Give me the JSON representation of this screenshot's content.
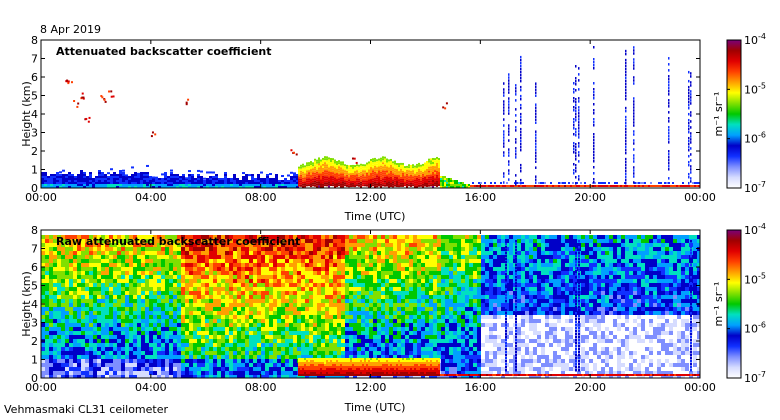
{
  "date_label": "8 Apr 2019",
  "footer": "Vehmasmaki CL31 ceilometer",
  "colormap": [
    "#ffffff",
    "#d6dcff",
    "#7f8fff",
    "#1030ff",
    "#0000c8",
    "#00a0ff",
    "#00e0c0",
    "#00c800",
    "#80e000",
    "#ffff00",
    "#ffa000",
    "#ff4000",
    "#e00000",
    "#a00000",
    "#7a007a"
  ],
  "chart_data": [
    {
      "type": "heatmap",
      "title": "Attenuated backscatter coefficient",
      "xlabel": "Time (UTC)",
      "ylabel": "Height (km)",
      "x_ticks": [
        "00:00",
        "04:00",
        "08:00",
        "12:00",
        "16:00",
        "20:00",
        "00:00"
      ],
      "x_range_hours": [
        0,
        24
      ],
      "y_ticks": [
        "0",
        "1",
        "2",
        "3",
        "4",
        "5",
        "6",
        "7",
        "8"
      ],
      "ylim": [
        0,
        8
      ],
      "colorbar": {
        "label": "m⁻¹ sr⁻¹",
        "ticks": [
          {
            "base": "10",
            "exp": "-4"
          },
          {
            "base": "10",
            "exp": "-5"
          },
          {
            "base": "10",
            "exp": "-6"
          },
          {
            "base": "10",
            "exp": "-7"
          }
        ],
        "scale": "log",
        "range": [
          1e-07,
          0.0001
        ]
      }
    },
    {
      "type": "heatmap",
      "title": "Raw attenuated backscatter coefficient",
      "xlabel": "Time (UTC)",
      "ylabel": "Height (km)",
      "x_ticks": [
        "00:00",
        "04:00",
        "08:00",
        "12:00",
        "16:00",
        "20:00",
        "00:00"
      ],
      "x_range_hours": [
        0,
        24
      ],
      "y_ticks": [
        "0",
        "1",
        "2",
        "3",
        "4",
        "5",
        "6",
        "7",
        "8"
      ],
      "ylim": [
        0,
        8
      ],
      "colorbar": {
        "label": "m⁻¹ sr⁻¹",
        "ticks": [
          {
            "base": "10",
            "exp": "-4"
          },
          {
            "base": "10",
            "exp": "-5"
          },
          {
            "base": "10",
            "exp": "-6"
          },
          {
            "base": "10",
            "exp": "-7"
          }
        ],
        "scale": "log",
        "range": [
          1e-07,
          0.0001
        ]
      }
    }
  ]
}
